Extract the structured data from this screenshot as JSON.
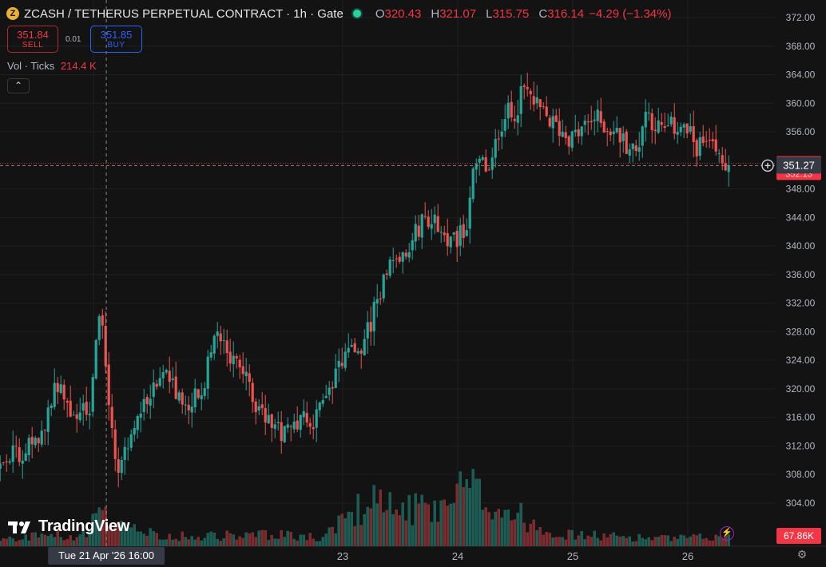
{
  "header": {
    "title": "ZCASH / TETHERUS PERPETUAL CONTRACT · 1h · Gate",
    "symbol_glyph": "Z",
    "ohlc": [
      {
        "key": "O",
        "value": "320.43"
      },
      {
        "key": "H",
        "value": "321.07"
      },
      {
        "key": "L",
        "value": "315.75"
      },
      {
        "key": "C",
        "value": "316.14"
      }
    ],
    "change": "−4.29 (−1.34%)"
  },
  "trade": {
    "sell_price": "351.84",
    "sell_label": "SELL",
    "spread": "0.01",
    "buy_price": "351.85",
    "buy_label": "BUY"
  },
  "volume_legend": {
    "label": "Vol · Ticks",
    "value": "214.4 K"
  },
  "collapse_icon": "chevron-up-icon",
  "branding": {
    "name": "TradingView",
    "logo_glyph": "TV"
  },
  "icons": [
    "zcash-coin-icon",
    "status-dot-icon",
    "chevron-up-icon",
    "tradingview-logo-icon",
    "crosshair-plus-icon",
    "lightning-icon",
    "gear-icon"
  ],
  "colors": {
    "up": "#26a69a",
    "down": "#ef5350",
    "price_tag": "#f23645",
    "accent": "#2962ff"
  },
  "chart_data": {
    "type": "candlestick",
    "interval": "1h",
    "y_axis": {
      "range": [
        301,
        373
      ],
      "ticks": [
        "372.00",
        "368.00",
        "364.00",
        "360.00",
        "356.00",
        "348.00",
        "344.00",
        "340.00",
        "336.00",
        "332.00",
        "328.00",
        "324.00",
        "320.00",
        "316.00",
        "312.00",
        "308.00",
        "304.00"
      ]
    },
    "x_axis": {
      "ticks": [
        {
          "label": "21",
          "t": 3
        },
        {
          "label": "23",
          "t": 16
        },
        {
          "label": "24",
          "t": 22
        },
        {
          "label": "25",
          "t": 28
        },
        {
          "label": "26",
          "t": 34
        }
      ],
      "t_range": [
        -2.7,
        40
      ]
    },
    "crosshair": {
      "date_label": "Tue 21 Apr '26",
      "time_label": "16:00",
      "t": 3.67
    },
    "last_price": {
      "value": 351.27,
      "label": "351.27",
      "hidden_label": "352.13"
    },
    "volume_tag": "67.86K",
    "key_points": [
      {
        "t": -2.7,
        "p": 309
      },
      {
        "t": 0.0,
        "p": 312
      },
      {
        "t": 1.2,
        "p": 321
      },
      {
        "t": 1.8,
        "p": 316
      },
      {
        "t": 2.8,
        "p": 318
      },
      {
        "t": 3.35,
        "p": 330
      },
      {
        "t": 3.55,
        "p": 327
      },
      {
        "t": 4.0,
        "p": 312
      },
      {
        "t": 4.3,
        "p": 309
      },
      {
        "t": 4.7,
        "p": 311
      },
      {
        "t": 5.5,
        "p": 317
      },
      {
        "t": 6.8,
        "p": 322
      },
      {
        "t": 7.7,
        "p": 318
      },
      {
        "t": 8.6,
        "p": 319
      },
      {
        "t": 9.3,
        "p": 327
      },
      {
        "t": 10.6,
        "p": 323
      },
      {
        "t": 11.5,
        "p": 318
      },
      {
        "t": 12.6,
        "p": 314
      },
      {
        "t": 14.7,
        "p": 316
      },
      {
        "t": 16.0,
        "p": 324
      },
      {
        "t": 17.1,
        "p": 326
      },
      {
        "t": 18.2,
        "p": 336
      },
      {
        "t": 19.3,
        "p": 340
      },
      {
        "t": 20.3,
        "p": 344
      },
      {
        "t": 20.9,
        "p": 343
      },
      {
        "t": 21.6,
        "p": 340
      },
      {
        "t": 22.4,
        "p": 342
      },
      {
        "t": 22.7,
        "p": 349
      },
      {
        "t": 23.2,
        "p": 352
      },
      {
        "t": 23.7,
        "p": 350
      },
      {
        "t": 24.1,
        "p": 356
      },
      {
        "t": 24.5,
        "p": 359
      },
      {
        "t": 24.8,
        "p": 358
      },
      {
        "t": 25.5,
        "p": 362
      },
      {
        "t": 26.2,
        "p": 359
      },
      {
        "t": 27.0,
        "p": 357
      },
      {
        "t": 28.0,
        "p": 355
      },
      {
        "t": 29.1,
        "p": 358
      },
      {
        "t": 30.2,
        "p": 356
      },
      {
        "t": 31.3,
        "p": 353
      },
      {
        "t": 31.8,
        "p": 359
      },
      {
        "t": 32.6,
        "p": 356
      },
      {
        "t": 33.6,
        "p": 357
      },
      {
        "t": 34.5,
        "p": 354
      },
      {
        "t": 35.0,
        "p": 354
      },
      {
        "t": 35.7,
        "p": 352
      },
      {
        "t": 36.1,
        "p": 351.3
      }
    ],
    "volume_profile": [
      {
        "t": -2.7,
        "v": 10
      },
      {
        "t": 2.7,
        "v": 15
      },
      {
        "t": 3.3,
        "v": 45
      },
      {
        "t": 3.8,
        "v": 30
      },
      {
        "t": 5.0,
        "v": 20
      },
      {
        "t": 8.0,
        "v": 12
      },
      {
        "t": 12.0,
        "v": 15
      },
      {
        "t": 15.0,
        "v": 12
      },
      {
        "t": 17.5,
        "v": 65
      },
      {
        "t": 19.0,
        "v": 45
      },
      {
        "t": 21.0,
        "v": 50
      },
      {
        "t": 22.5,
        "v": 75
      },
      {
        "t": 23.5,
        "v": 60
      },
      {
        "t": 25.5,
        "v": 35
      },
      {
        "t": 27.5,
        "v": 15
      },
      {
        "t": 33.0,
        "v": 10
      },
      {
        "t": 36.1,
        "v": 12
      }
    ],
    "volume_max": 120,
    "grid": true
  }
}
